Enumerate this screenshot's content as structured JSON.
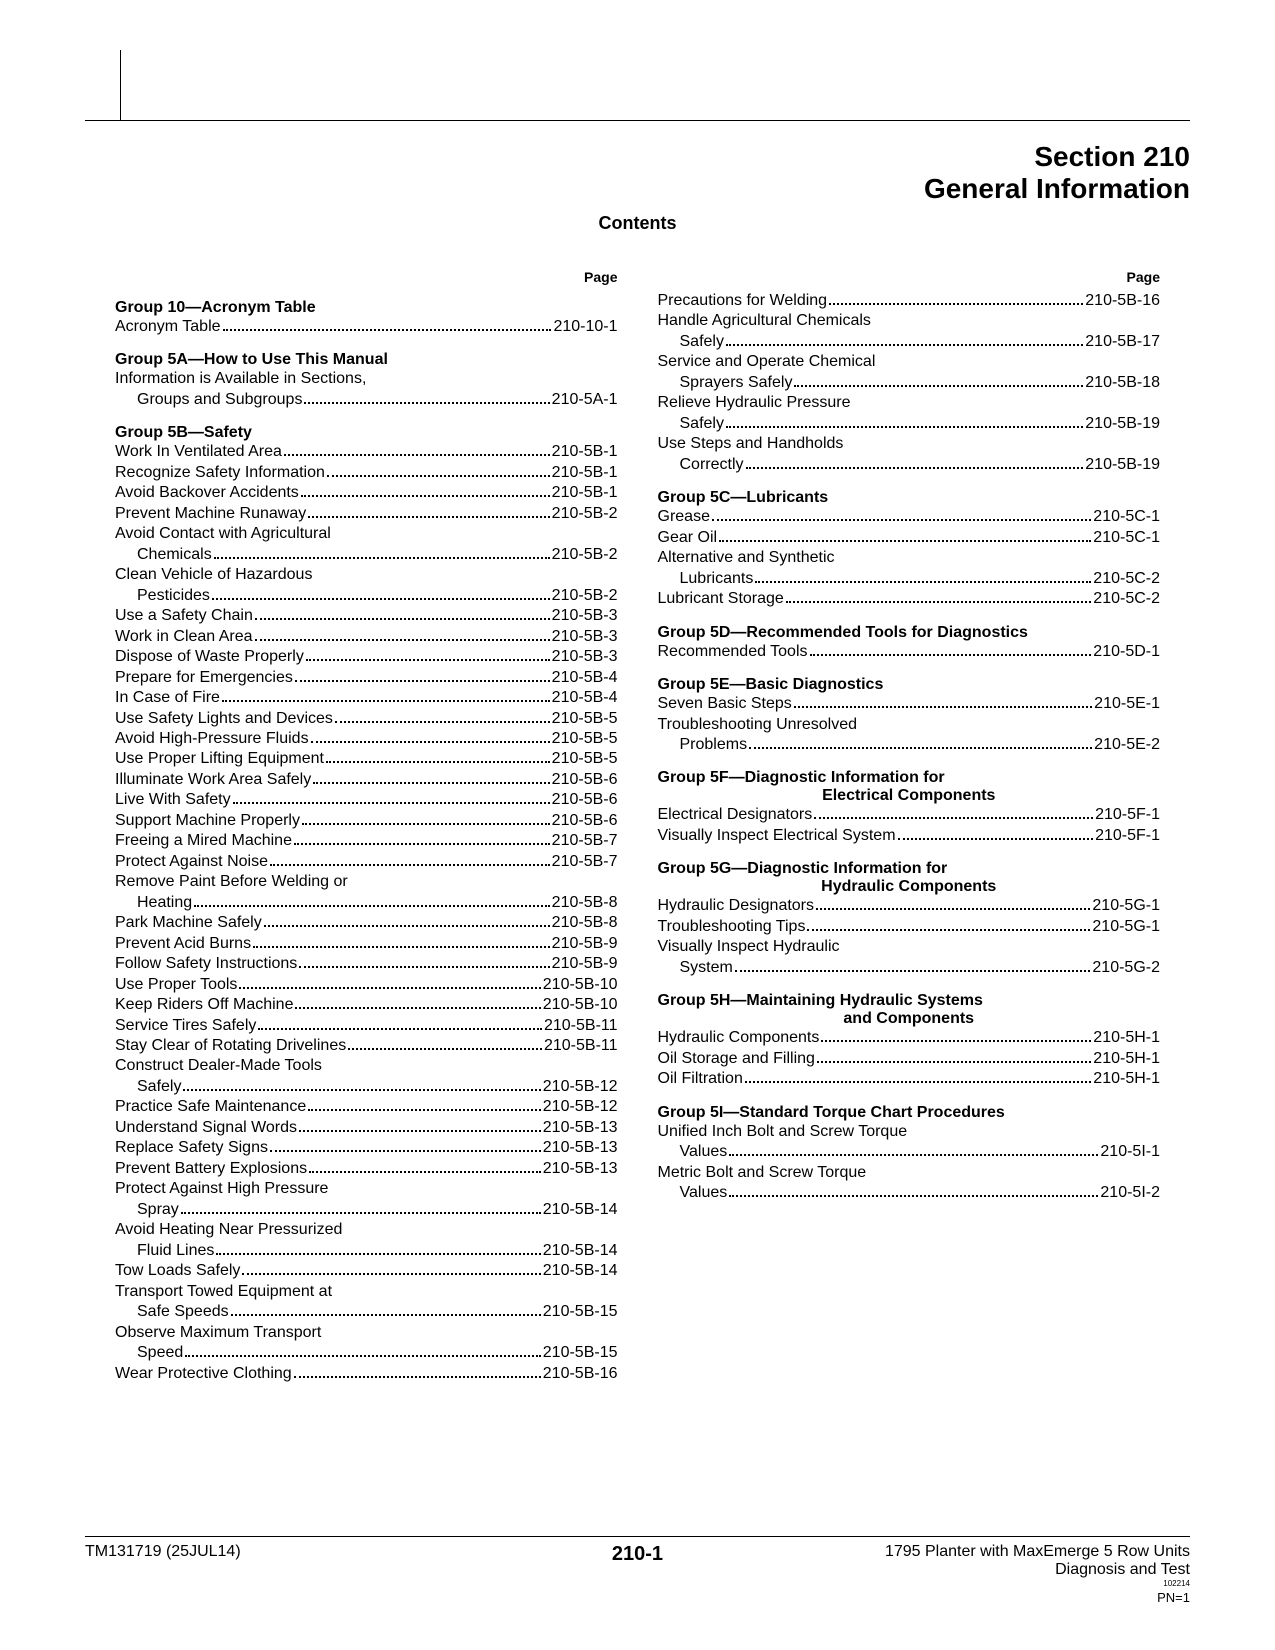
{
  "header": {
    "section_label": "Section 210",
    "section_title": "General Information",
    "contents_label": "Contents",
    "page_col_hdr": "Page"
  },
  "left": {
    "groups": [
      {
        "title": "Group 10—Acronym Table",
        "entries": [
          {
            "label": "Acronym Table",
            "page": "210-10-1"
          }
        ]
      },
      {
        "title": "Group 5A—How to Use This Manual",
        "entries": [
          {
            "label": "Information is Available in Sections,",
            "cont": true
          },
          {
            "label": "Groups and Subgroups",
            "page": "210-5A-1",
            "indent": true
          }
        ]
      },
      {
        "title": "Group 5B—Safety",
        "entries": [
          {
            "label": "Work In Ventilated Area",
            "page": "210-5B-1"
          },
          {
            "label": "Recognize Safety Information",
            "page": "210-5B-1"
          },
          {
            "label": "Avoid Backover Accidents",
            "page": "210-5B-1"
          },
          {
            "label": "Prevent Machine Runaway",
            "page": "210-5B-2"
          },
          {
            "label": "Avoid Contact with Agricultural",
            "cont": true
          },
          {
            "label": "Chemicals",
            "page": "210-5B-2",
            "indent": true
          },
          {
            "label": "Clean Vehicle of Hazardous",
            "cont": true
          },
          {
            "label": "Pesticides",
            "page": "210-5B-2",
            "indent": true
          },
          {
            "label": "Use a Safety Chain",
            "page": "210-5B-3"
          },
          {
            "label": "Work in Clean Area",
            "page": "210-5B-3"
          },
          {
            "label": "Dispose of Waste Properly",
            "page": "210-5B-3"
          },
          {
            "label": "Prepare for Emergencies",
            "page": "210-5B-4"
          },
          {
            "label": "In Case of Fire",
            "page": "210-5B-4"
          },
          {
            "label": "Use Safety Lights and Devices",
            "page": "210-5B-5"
          },
          {
            "label": "Avoid High-Pressure Fluids",
            "page": "210-5B-5"
          },
          {
            "label": "Use Proper Lifting Equipment",
            "page": "210-5B-5"
          },
          {
            "label": "Illuminate Work Area Safely",
            "page": "210-5B-6"
          },
          {
            "label": "Live With Safety",
            "page": "210-5B-6"
          },
          {
            "label": "Support Machine Properly",
            "page": "210-5B-6"
          },
          {
            "label": "Freeing a Mired Machine",
            "page": "210-5B-7"
          },
          {
            "label": "Protect Against Noise",
            "page": "210-5B-7"
          },
          {
            "label": "Remove Paint Before Welding or",
            "cont": true
          },
          {
            "label": "Heating",
            "page": "210-5B-8",
            "indent": true
          },
          {
            "label": "Park Machine Safely",
            "page": "210-5B-8"
          },
          {
            "label": "Prevent Acid Burns",
            "page": "210-5B-9"
          },
          {
            "label": "Follow Safety Instructions",
            "page": "210-5B-9"
          },
          {
            "label": "Use Proper Tools",
            "page": "210-5B-10"
          },
          {
            "label": "Keep Riders Off Machine",
            "page": "210-5B-10"
          },
          {
            "label": "Service Tires Safely",
            "page": "210-5B-11"
          },
          {
            "label": "Stay Clear of Rotating Drivelines",
            "page": "210-5B-11"
          },
          {
            "label": "Construct Dealer-Made Tools",
            "cont": true
          },
          {
            "label": "Safely",
            "page": "210-5B-12",
            "indent": true
          },
          {
            "label": "Practice Safe Maintenance",
            "page": "210-5B-12"
          },
          {
            "label": "Understand Signal Words",
            "page": "210-5B-13"
          },
          {
            "label": "Replace Safety Signs",
            "page": "210-5B-13"
          },
          {
            "label": "Prevent Battery Explosions",
            "page": "210-5B-13"
          },
          {
            "label": "Protect Against High Pressure",
            "cont": true
          },
          {
            "label": "Spray",
            "page": "210-5B-14",
            "indent": true
          },
          {
            "label": "Avoid Heating Near Pressurized",
            "cont": true
          },
          {
            "label": "Fluid Lines",
            "page": "210-5B-14",
            "indent": true
          },
          {
            "label": "Tow Loads Safely",
            "page": "210-5B-14"
          },
          {
            "label": "Transport Towed Equipment at",
            "cont": true
          },
          {
            "label": "Safe Speeds",
            "page": "210-5B-15",
            "indent": true
          },
          {
            "label": "Observe Maximum Transport",
            "cont": true
          },
          {
            "label": "Speed",
            "page": "210-5B-15",
            "indent": true
          },
          {
            "label": "Wear Protective Clothing",
            "page": "210-5B-16"
          }
        ]
      }
    ]
  },
  "right": {
    "orphan_entries": [
      {
        "label": "Precautions for Welding",
        "page": "210-5B-16"
      },
      {
        "label": "Handle Agricultural Chemicals",
        "cont": true
      },
      {
        "label": "Safely",
        "page": "210-5B-17",
        "indent": true
      },
      {
        "label": "Service and Operate Chemical",
        "cont": true
      },
      {
        "label": "Sprayers Safely",
        "page": "210-5B-18",
        "indent": true
      },
      {
        "label": "Relieve Hydraulic Pressure",
        "cont": true
      },
      {
        "label": "Safely",
        "page": "210-5B-19",
        "indent": true
      },
      {
        "label": "Use Steps and Handholds",
        "cont": true
      },
      {
        "label": "Correctly",
        "page": "210-5B-19",
        "indent": true
      }
    ],
    "groups": [
      {
        "title": "Group 5C—Lubricants",
        "entries": [
          {
            "label": "Grease",
            "page": "210-5C-1"
          },
          {
            "label": "Gear Oil",
            "page": "210-5C-1"
          },
          {
            "label": "Alternative and Synthetic",
            "cont": true
          },
          {
            "label": "Lubricants",
            "page": "210-5C-2",
            "indent": true
          },
          {
            "label": "Lubricant Storage",
            "page": "210-5C-2"
          }
        ]
      },
      {
        "title": "Group 5D—Recommended Tools for Diagnostics",
        "entries": [
          {
            "label": "Recommended Tools",
            "page": "210-5D-1"
          }
        ]
      },
      {
        "title": "Group 5E—Basic Diagnostics",
        "entries": [
          {
            "label": "Seven Basic Steps",
            "page": "210-5E-1"
          },
          {
            "label": "Troubleshooting Unresolved",
            "cont": true
          },
          {
            "label": "Problems",
            "page": "210-5E-2",
            "indent": true
          }
        ]
      },
      {
        "title": "Group 5F—Diagnostic Information for",
        "sub": "Electrical Components",
        "entries": [
          {
            "label": "Electrical Designators",
            "page": "210-5F-1"
          },
          {
            "label": "Visually Inspect Electrical System",
            "page": "210-5F-1"
          }
        ]
      },
      {
        "title": "Group 5G—Diagnostic Information for",
        "sub": "Hydraulic Components",
        "entries": [
          {
            "label": "Hydraulic Designators",
            "page": "210-5G-1"
          },
          {
            "label": "Troubleshooting Tips",
            "page": "210-5G-1"
          },
          {
            "label": "Visually Inspect Hydraulic",
            "cont": true
          },
          {
            "label": "System",
            "page": "210-5G-2",
            "indent": true
          }
        ]
      },
      {
        "title": "Group 5H—Maintaining Hydraulic Systems",
        "sub": "and Components",
        "entries": [
          {
            "label": "Hydraulic Components",
            "page": "210-5H-1"
          },
          {
            "label": "Oil Storage and Filling",
            "page": "210-5H-1"
          },
          {
            "label": "Oil Filtration",
            "page": "210-5H-1"
          }
        ]
      },
      {
        "title": "Group 5I—Standard Torque Chart Procedures",
        "entries": [
          {
            "label": "Unified Inch Bolt and Screw Torque",
            "cont": true
          },
          {
            "label": "Values",
            "page": "210-5I-1",
            "indent": true
          },
          {
            "label": "Metric Bolt and Screw Torque",
            "cont": true
          },
          {
            "label": "Values",
            "page": "210-5I-2",
            "indent": true
          }
        ]
      }
    ]
  },
  "footer": {
    "left": "TM131719 (25JUL14)",
    "center": "210-1",
    "right1": "1795 Planter with MaxEmerge 5 Row Units",
    "right2": "Diagnosis and Test",
    "tiny": "102214",
    "pn": "PN=1"
  }
}
